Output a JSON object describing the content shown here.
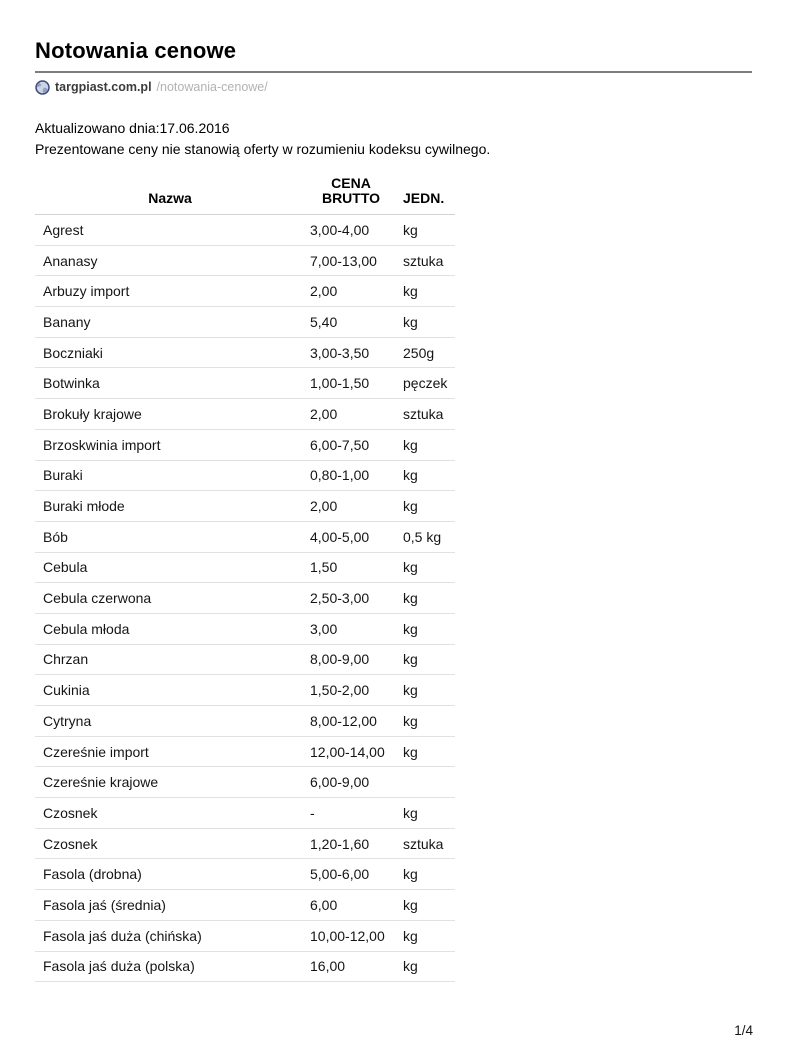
{
  "header": {
    "title": "Notowania cenowe",
    "source": {
      "icon": "globe-icon",
      "domain": "targpiast.com.pl",
      "path": "/notowania-cenowe/"
    }
  },
  "meta": {
    "updated": "Aktualizowano dnia:17.06.2016",
    "disclaimer": "Prezentowane ceny nie stanowią oferty w rozumieniu kodeksu cywilnego."
  },
  "table": {
    "columns": [
      "Nazwa",
      "CENA BRUTTO",
      "JEDN."
    ],
    "rows": [
      {
        "name": "Agrest",
        "price": "3,00-4,00",
        "unit": "kg"
      },
      {
        "name": "Ananasy",
        "price": "7,00-13,00",
        "unit": "sztuka"
      },
      {
        "name": "Arbuzy import",
        "price": "2,00",
        "unit": "kg"
      },
      {
        "name": "Banany",
        "price": "5,40",
        "unit": "kg"
      },
      {
        "name": "Boczniaki",
        "price": "3,00-3,50",
        "unit": "250g"
      },
      {
        "name": "Botwinka",
        "price": "1,00-1,50",
        "unit": "pęczek"
      },
      {
        "name": "Brokuły krajowe",
        "price": "2,00",
        "unit": "sztuka"
      },
      {
        "name": "Brzoskwinia import",
        "price": "6,00-7,50",
        "unit": "kg"
      },
      {
        "name": "Buraki",
        "price": "0,80-1,00",
        "unit": "kg"
      },
      {
        "name": "Buraki młode",
        "price": "2,00",
        "unit": "kg"
      },
      {
        "name": "Bób",
        "price": "4,00-5,00",
        "unit": "0,5 kg"
      },
      {
        "name": "Cebula",
        "price": "1,50",
        "unit": "kg"
      },
      {
        "name": "Cebula czerwona",
        "price": "2,50-3,00",
        "unit": "kg"
      },
      {
        "name": "Cebula młoda",
        "price": "3,00",
        "unit": "kg"
      },
      {
        "name": "Chrzan",
        "price": "8,00-9,00",
        "unit": "kg"
      },
      {
        "name": "Cukinia",
        "price": "1,50-2,00",
        "unit": "kg"
      },
      {
        "name": "Cytryna",
        "price": "8,00-12,00",
        "unit": "kg"
      },
      {
        "name": "Czereśnie import",
        "price": "12,00-14,00",
        "unit": "kg"
      },
      {
        "name": "Czereśnie krajowe",
        "price": "6,00-9,00",
        "unit": ""
      },
      {
        "name": "Czosnek",
        "price": "-",
        "unit": "kg"
      },
      {
        "name": "Czosnek",
        "price": "1,20-1,60",
        "unit": "sztuka"
      },
      {
        "name": "Fasola (drobna)",
        "price": "5,00-6,00",
        "unit": "kg"
      },
      {
        "name": "Fasola jaś (średnia)",
        "price": "6,00",
        "unit": "kg"
      },
      {
        "name": "Fasola jaś duża (chińska)",
        "price": "10,00-12,00",
        "unit": "kg"
      },
      {
        "name": "Fasola jaś duża (polska)",
        "price": "16,00",
        "unit": "kg"
      }
    ]
  },
  "footer": {
    "page_number": "1/4"
  },
  "colors": {
    "rule_gray": "#7d7d7d",
    "row_divider": "#e1e1e1",
    "header_divider": "#d2d2d2",
    "url_path_gray": "#b2b2b2",
    "favicon_outline": "#3d4a75",
    "favicon_fill": "#ccd4e6",
    "favicon_land": "#8fa0c4"
  }
}
